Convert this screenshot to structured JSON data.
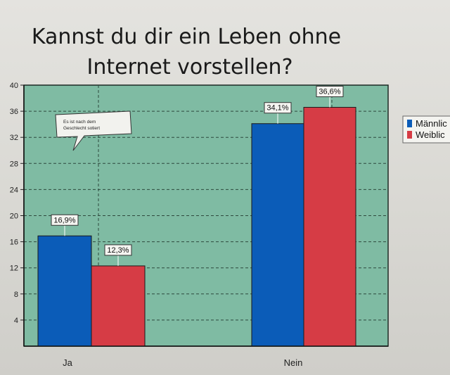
{
  "colors": {
    "plot_bg": "#7fbba3",
    "male": "#0b5cb8",
    "female": "#d63c45",
    "grid": "#2e4a3e"
  },
  "chart_data": {
    "type": "bar",
    "title": "Kannst du dir ein Leben ohne Internet vorstellen?",
    "title_lines": [
      "Kannst du dir ein Leben ohne",
      "Internet vorstellen?"
    ],
    "categories": [
      "Ja",
      "Nein"
    ],
    "series": [
      {
        "name": "Männlich",
        "values": [
          16.9,
          34.1
        ],
        "labels": [
          "16,9%",
          "34,1%"
        ],
        "color": "#0b5cb8"
      },
      {
        "name": "Weiblich",
        "values": [
          12.3,
          36.6
        ],
        "labels": [
          "12,3%",
          "36,6%"
        ],
        "color": "#d63c45"
      }
    ],
    "legend_labels": [
      "Männlic",
      "Weiblic"
    ],
    "ylim": [
      0,
      40
    ],
    "yticks": [
      4,
      8,
      12,
      16,
      20,
      24,
      28,
      32,
      36,
      40
    ],
    "ytick_labels": [
      "4",
      "8",
      "12",
      "16",
      "20",
      "24",
      "28",
      "32",
      "36",
      "40"
    ],
    "grid": true,
    "legend_position": "right",
    "annotation": {
      "lines": [
        "Es ist nach dem",
        "Geschlecht sotiert"
      ]
    }
  }
}
